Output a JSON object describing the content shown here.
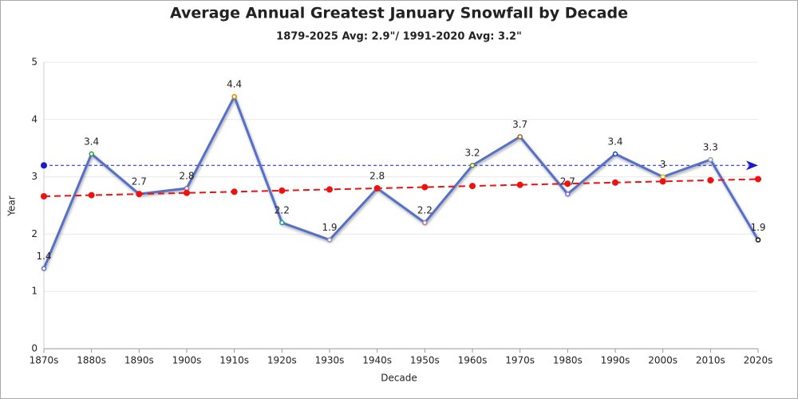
{
  "chart_data": {
    "type": "line",
    "title": "Average Annual Greatest January Snowfall by Decade",
    "subtitle": "1879-2025 Avg: 2.9\"/ 1991-2020 Avg: 3.2\"",
    "x_label": "Decade",
    "y_label": "Year",
    "categories": [
      "1870s",
      "1880s",
      "1890s",
      "1900s",
      "1910s",
      "1920s",
      "1930s",
      "1940s",
      "1950s",
      "1960s",
      "1970s",
      "1980s",
      "1990s",
      "2000s",
      "2010s",
      "2020s"
    ],
    "series": [
      {
        "color": "#5470c6",
        "values": [
          1.4,
          3.4,
          2.7,
          2.8,
          4.4,
          2.2,
          1.9,
          2.8,
          2.2,
          3.2,
          3.7,
          2.7,
          3.4,
          3,
          3.3,
          1.9
        ],
        "marker_colors": [
          "#5470c6",
          "#2ca02c",
          "#d4a017",
          "#9467bd",
          "#e08a00",
          "#17a589",
          "#8c8cc0",
          "#c0392b",
          "#b07aa1",
          "#6b8e23",
          "#b5651d",
          "#7b68ee",
          "#1f3fbf",
          "#d4c017",
          "#8c9eb0",
          "#111111"
        ],
        "data_labels": true
      },
      {
        "color": "#ee1111",
        "values": [
          2.66,
          2.68,
          2.7,
          2.72,
          2.74,
          2.76,
          2.78,
          2.8,
          2.82,
          2.84,
          2.86,
          2.88,
          2.9,
          2.92,
          2.94,
          2.96
        ],
        "dashed": true
      }
    ],
    "reference_line": {
      "value": 3.2,
      "color": "#1a1acc"
    },
    "ylim": [
      0,
      5
    ],
    "yticks": [
      0,
      1,
      2,
      3,
      4,
      5
    ],
    "grid": true
  }
}
